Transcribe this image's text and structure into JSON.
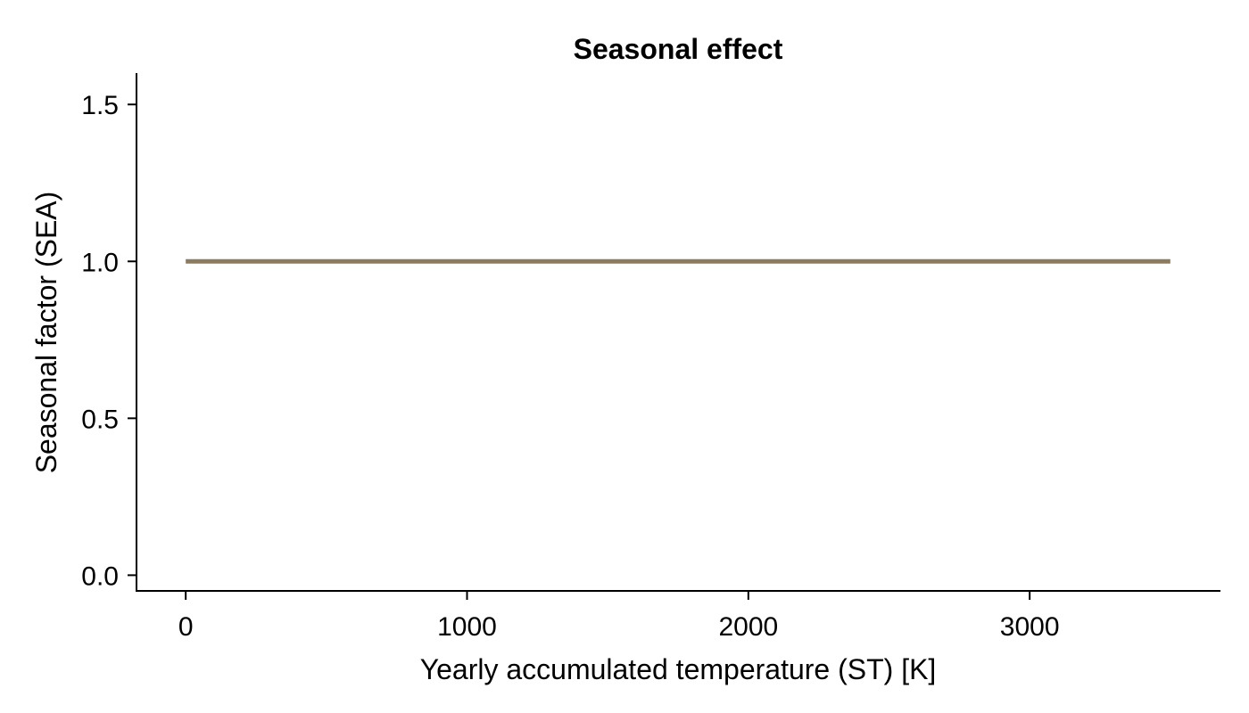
{
  "chart_data": {
    "type": "line",
    "title": "Seasonal effect",
    "xlabel": "Yearly accumulated temperature (ST) [K]",
    "ylabel": "Seasonal factor (SEA)",
    "xlim": [
      -175,
      3675
    ],
    "ylim": [
      -0.05,
      1.6
    ],
    "x_ticks": [
      0,
      1000,
      2000,
      3000
    ],
    "x_tick_labels": [
      "0",
      "1000",
      "2000",
      "3000"
    ],
    "y_ticks": [
      0.0,
      0.5,
      1.0,
      1.5
    ],
    "y_tick_labels": [
      "0.0",
      "0.5",
      "1.0",
      "1.5"
    ],
    "grid": false,
    "series": [
      {
        "color": "#8c7b5e",
        "x": [
          0,
          3500
        ],
        "y": [
          1.0,
          1.0
        ]
      }
    ]
  }
}
